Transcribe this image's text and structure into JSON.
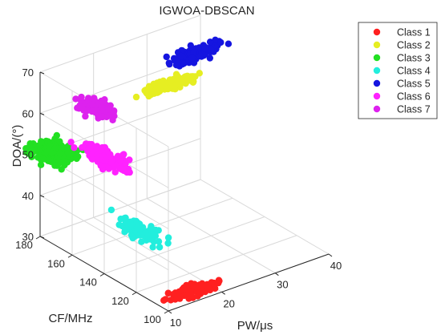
{
  "chart_data": {
    "type": "scatter",
    "title": "IGWOA-DBSCAN",
    "xlabel": "PW/μs",
    "ylabel": "CF/MHz",
    "zlabel": "DOA/(°)",
    "xlim": [
      10,
      40
    ],
    "ylim": [
      100,
      180
    ],
    "zlim": [
      30,
      70
    ],
    "xticks": [
      "10",
      "20",
      "30",
      "40"
    ],
    "yticks": [
      "100",
      "120",
      "140",
      "160",
      "180"
    ],
    "zticks": [
      "30",
      "40",
      "50",
      "60",
      "70"
    ],
    "grid": true,
    "legend_position": "top-right",
    "series": [
      {
        "name": "Class 1",
        "color": "#ff2020",
        "center": [
          17,
          108,
          30
        ],
        "spread": [
          4.2,
          4,
          0.6
        ],
        "count": 140
      },
      {
        "name": "Class 2",
        "color": "#e6ee22",
        "center": [
          31.5,
          171,
          59
        ],
        "spread": [
          5.5,
          3,
          0.8
        ],
        "count": 130
      },
      {
        "name": "Class 3",
        "color": "#22e022",
        "center": [
          12,
          178,
          50
        ],
        "spread": [
          3.5,
          9,
          1.4
        ],
        "count": 180
      },
      {
        "name": "Class 4",
        "color": "#22eedd",
        "center": [
          10.5,
          120,
          45
        ],
        "spread": [
          2,
          12,
          1.5
        ],
        "count": 90
      },
      {
        "name": "Class 5",
        "color": "#1515e0",
        "center": [
          37,
          172,
          64
        ],
        "spread": [
          4,
          3,
          1.5
        ],
        "count": 120
      },
      {
        "name": "Class 6",
        "color": "#ff22ff",
        "center": [
          10.5,
          140,
          58
        ],
        "spread": [
          2,
          14,
          1.5
        ],
        "count": 110
      },
      {
        "name": "Class 7",
        "color": "#dd22ee",
        "center": [
          11.5,
          150,
          67.5
        ],
        "spread": [
          2,
          10,
          1
        ],
        "count": 90
      }
    ]
  }
}
